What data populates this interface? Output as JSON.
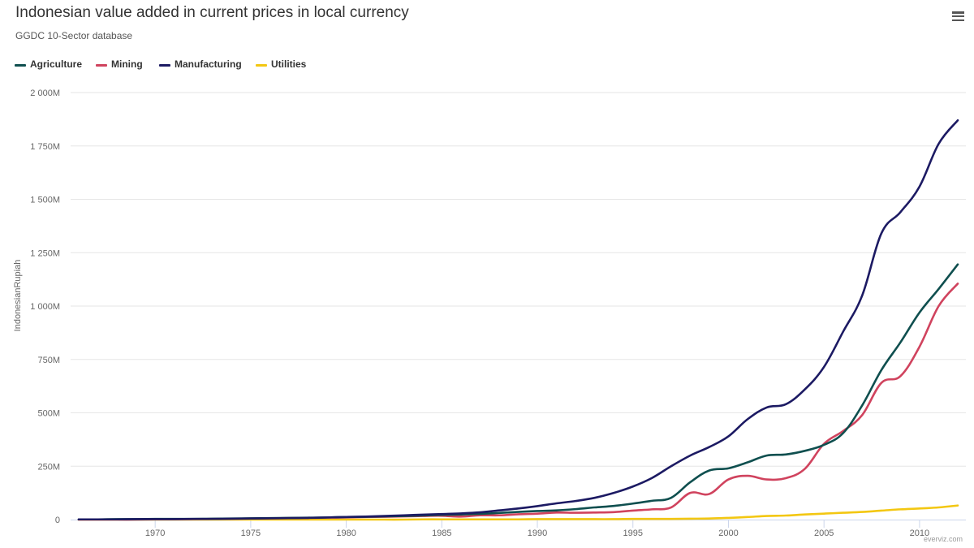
{
  "header": {
    "menu_icon": "hamburger-menu-icon"
  },
  "credit": "everviz.com",
  "chart_data": {
    "type": "line",
    "title": "Indonesian value added in current prices in local currency",
    "subtitle": "GGDC 10-Sector database",
    "xlabel": "",
    "ylabel": "IndonesianRupiah",
    "xlim": [
      1966,
      2012
    ],
    "ylim": [
      0,
      2000
    ],
    "unit": "M",
    "x_ticks": [
      1970,
      1975,
      1980,
      1985,
      1990,
      1995,
      2000,
      2005,
      2010
    ],
    "x_tick_labels": [
      "1970",
      "1975",
      "1980",
      "1985",
      "1990",
      "1995",
      "2000",
      "2005",
      "2010"
    ],
    "y_ticks": [
      0,
      250,
      500,
      750,
      1000,
      1250,
      1500,
      1750,
      2000
    ],
    "y_tick_labels": [
      "0",
      "250M",
      "500M",
      "750M",
      "1 000M",
      "1 250M",
      "1 500M",
      "1 750M",
      "2 000M"
    ],
    "grid": true,
    "legend_position": "top-left",
    "x": [
      1966,
      1967,
      1968,
      1969,
      1970,
      1971,
      1972,
      1973,
      1974,
      1975,
      1976,
      1977,
      1978,
      1979,
      1980,
      1981,
      1982,
      1983,
      1984,
      1985,
      1986,
      1987,
      1988,
      1989,
      1990,
      1991,
      1992,
      1993,
      1994,
      1995,
      1996,
      1997,
      1998,
      1999,
      2000,
      2001,
      2002,
      2003,
      2004,
      2005,
      2006,
      2007,
      2008,
      2009,
      2010,
      2011,
      2012
    ],
    "series": [
      {
        "name": "Agriculture",
        "color": "#0f4f4f",
        "values": [
          1,
          1,
          2,
          2,
          3,
          3,
          3,
          4,
          5,
          6,
          7,
          8,
          9,
          10,
          12,
          13,
          15,
          17,
          19,
          22,
          24,
          27,
          31,
          36,
          40,
          43,
          49,
          57,
          64,
          75,
          88,
          102,
          175,
          230,
          240,
          268,
          300,
          305,
          322,
          350,
          405,
          535,
          700,
          830,
          970,
          1080,
          1195
        ]
      },
      {
        "name": "Mining",
        "color": "#d0435e",
        "values": [
          0,
          0,
          0,
          0,
          1,
          1,
          2,
          3,
          4,
          5,
          6,
          7,
          8,
          9,
          10,
          12,
          13,
          15,
          17,
          18,
          14,
          20,
          20,
          25,
          28,
          33,
          32,
          33,
          35,
          42,
          48,
          57,
          125,
          120,
          188,
          205,
          188,
          194,
          238,
          355,
          415,
          490,
          640,
          672,
          810,
          1000,
          1105
        ]
      },
      {
        "name": "Manufacturing",
        "color": "#1c1a63",
        "values": [
          1,
          1,
          1,
          2,
          2,
          2,
          3,
          3,
          4,
          5,
          6,
          7,
          8,
          10,
          12,
          14,
          17,
          20,
          23,
          26,
          29,
          34,
          43,
          52,
          63,
          76,
          87,
          102,
          125,
          155,
          195,
          250,
          300,
          340,
          390,
          470,
          525,
          540,
          610,
          715,
          880,
          1050,
          1340,
          1440,
          1560,
          1760,
          1870
        ]
      },
      {
        "name": "Utilities",
        "color": "#f3c712",
        "values": [
          0,
          0,
          0,
          0,
          0,
          0,
          0,
          0,
          0,
          0,
          0,
          0,
          0,
          0,
          0,
          0,
          0,
          0,
          1,
          1,
          1,
          1,
          1,
          1,
          2,
          2,
          2,
          2,
          2,
          3,
          3,
          3,
          4,
          5,
          8,
          12,
          17,
          19,
          24,
          28,
          32,
          36,
          42,
          48,
          52,
          57,
          66
        ]
      }
    ]
  }
}
